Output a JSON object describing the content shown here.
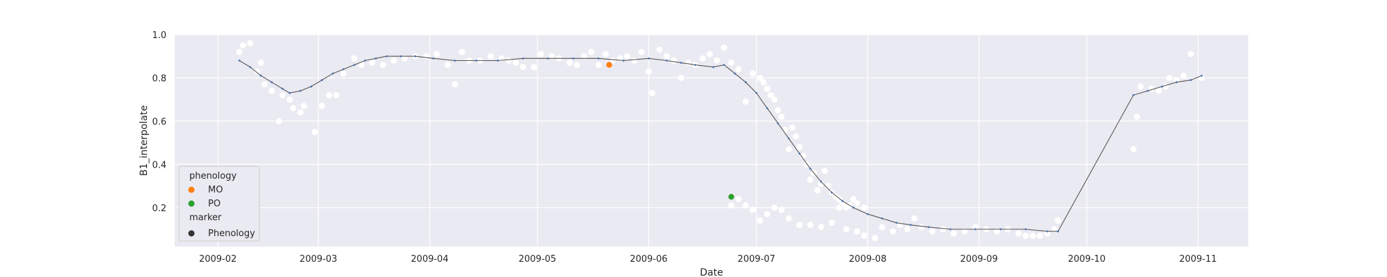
{
  "chart_data": {
    "type": "scatter",
    "title": "",
    "xlabel": "Date",
    "ylabel": "B1_interpolate",
    "xlim": [
      "2009-01-20",
      "2009-11-15"
    ],
    "ylim": [
      0.02,
      1.0
    ],
    "x_ticks": [
      "2009-02-01",
      "2009-03-01",
      "2009-04-01",
      "2009-05-01",
      "2009-06-01",
      "2009-07-01",
      "2009-08-01",
      "2009-09-01",
      "2009-10-01",
      "2009-11-01"
    ],
    "x_tick_labels": [
      "2009-02",
      "2009-03",
      "2009-04",
      "2009-05",
      "2009-06",
      "2009-07",
      "2009-08",
      "2009-09",
      "2009-10",
      "2009-11"
    ],
    "y_ticks": [
      0.2,
      0.4,
      0.6,
      0.8,
      1.0
    ],
    "y_tick_labels": [
      "0.2",
      "0.4",
      "0.6",
      "0.8",
      "1.0"
    ],
    "grid": true,
    "legend_position": "lower-left",
    "colors": {
      "background": "#eaeaf2",
      "grid": "#ffffff",
      "raw_points": "#ffffff",
      "line": "#555555",
      "line_markers": "#4c72b0",
      "MO": "#ff7f0e",
      "PO": "#2ca02c",
      "marker_legend": "#333333"
    },
    "legend": {
      "title_hue": "phenology",
      "hue_items": [
        {
          "label": "MO",
          "color": "#ff7f0e"
        },
        {
          "label": "PO",
          "color": "#2ca02c"
        }
      ],
      "title_style": "marker",
      "style_items": [
        {
          "label": "Phenology",
          "color": "#333333"
        }
      ]
    },
    "raw_points": [
      [
        "2009-02-07",
        0.92
      ],
      [
        "2009-02-08",
        0.95
      ],
      [
        "2009-02-10",
        0.96
      ],
      [
        "2009-02-12",
        0.83
      ],
      [
        "2009-02-13",
        0.87
      ],
      [
        "2009-02-14",
        0.77
      ],
      [
        "2009-02-16",
        0.74
      ],
      [
        "2009-02-18",
        0.6
      ],
      [
        "2009-02-19",
        0.72
      ],
      [
        "2009-02-21",
        0.7
      ],
      [
        "2009-02-22",
        0.66
      ],
      [
        "2009-02-24",
        0.64
      ],
      [
        "2009-02-25",
        0.67
      ],
      [
        "2009-02-28",
        0.55
      ],
      [
        "2009-03-02",
        0.67
      ],
      [
        "2009-03-04",
        0.72
      ],
      [
        "2009-03-06",
        0.72
      ],
      [
        "2009-03-08",
        0.82
      ],
      [
        "2009-03-11",
        0.89
      ],
      [
        "2009-03-13",
        0.86
      ],
      [
        "2009-03-16",
        0.87
      ],
      [
        "2009-03-19",
        0.86
      ],
      [
        "2009-03-22",
        0.88
      ],
      [
        "2009-03-25",
        0.89
      ],
      [
        "2009-03-28",
        0.9
      ],
      [
        "2009-03-31",
        0.9
      ],
      [
        "2009-04-03",
        0.91
      ],
      [
        "2009-04-06",
        0.86
      ],
      [
        "2009-04-08",
        0.77
      ],
      [
        "2009-04-10",
        0.92
      ],
      [
        "2009-04-12",
        0.88
      ],
      [
        "2009-04-15",
        0.88
      ],
      [
        "2009-04-18",
        0.9
      ],
      [
        "2009-04-21",
        0.89
      ],
      [
        "2009-04-23",
        0.88
      ],
      [
        "2009-04-25",
        0.87
      ],
      [
        "2009-04-27",
        0.85
      ],
      [
        "2009-04-30",
        0.85
      ],
      [
        "2009-05-02",
        0.91
      ],
      [
        "2009-05-05",
        0.9
      ],
      [
        "2009-05-07",
        0.89
      ],
      [
        "2009-05-10",
        0.87
      ],
      [
        "2009-05-12",
        0.86
      ],
      [
        "2009-05-14",
        0.9
      ],
      [
        "2009-05-16",
        0.92
      ],
      [
        "2009-05-18",
        0.86
      ],
      [
        "2009-05-20",
        0.91
      ],
      [
        "2009-05-22",
        0.88
      ],
      [
        "2009-05-24",
        0.89
      ],
      [
        "2009-05-26",
        0.9
      ],
      [
        "2009-05-28",
        0.88
      ],
      [
        "2009-05-30",
        0.92
      ],
      [
        "2009-06-01",
        0.83
      ],
      [
        "2009-06-02",
        0.73
      ],
      [
        "2009-06-04",
        0.93
      ],
      [
        "2009-06-06",
        0.9
      ],
      [
        "2009-06-08",
        0.88
      ],
      [
        "2009-06-10",
        0.8
      ],
      [
        "2009-06-12",
        0.87
      ],
      [
        "2009-06-14",
        0.86
      ],
      [
        "2009-06-16",
        0.89
      ],
      [
        "2009-06-18",
        0.91
      ],
      [
        "2009-06-20",
        0.88
      ],
      [
        "2009-06-22",
        0.94
      ],
      [
        "2009-06-24",
        0.87
      ],
      [
        "2009-06-26",
        0.84
      ],
      [
        "2009-06-28",
        0.69
      ],
      [
        "2009-06-30",
        0.82
      ],
      [
        "2009-07-02",
        0.8
      ],
      [
        "2009-07-03",
        0.78
      ],
      [
        "2009-07-04",
        0.75
      ],
      [
        "2009-07-05",
        0.72
      ],
      [
        "2009-07-06",
        0.7
      ],
      [
        "2009-07-07",
        0.65
      ],
      [
        "2009-07-08",
        0.62
      ],
      [
        "2009-07-09",
        0.56
      ],
      [
        "2009-07-10",
        0.47
      ],
      [
        "2009-07-11",
        0.57
      ],
      [
        "2009-07-12",
        0.53
      ],
      [
        "2009-07-13",
        0.48
      ],
      [
        "2009-07-14",
        0.44
      ],
      [
        "2009-07-15",
        0.4
      ],
      [
        "2009-07-16",
        0.33
      ],
      [
        "2009-07-17",
        0.36
      ],
      [
        "2009-07-18",
        0.28
      ],
      [
        "2009-07-19",
        0.31
      ],
      [
        "2009-07-20",
        0.37
      ],
      [
        "2009-07-21",
        0.3
      ],
      [
        "2009-07-22",
        0.27
      ],
      [
        "2009-07-23",
        0.25
      ],
      [
        "2009-07-24",
        0.24
      ],
      [
        "2009-07-25",
        0.22
      ],
      [
        "2009-07-26",
        0.2
      ],
      [
        "2009-07-27",
        0.21
      ],
      [
        "2009-07-28",
        0.24
      ],
      [
        "2009-07-29",
        0.22
      ],
      [
        "2009-07-31",
        0.2
      ]
    ],
    "raw_points_late": [
      [
        "2009-06-24",
        0.21
      ],
      [
        "2009-06-26",
        0.24
      ],
      [
        "2009-06-28",
        0.21
      ],
      [
        "2009-06-30",
        0.19
      ],
      [
        "2009-07-02",
        0.14
      ],
      [
        "2009-07-04",
        0.17
      ],
      [
        "2009-07-06",
        0.2
      ],
      [
        "2009-07-08",
        0.19
      ],
      [
        "2009-07-10",
        0.15
      ],
      [
        "2009-07-13",
        0.12
      ],
      [
        "2009-07-16",
        0.12
      ],
      [
        "2009-07-19",
        0.11
      ],
      [
        "2009-07-22",
        0.13
      ],
      [
        "2009-07-24",
        0.2
      ],
      [
        "2009-07-26",
        0.1
      ],
      [
        "2009-07-29",
        0.09
      ],
      [
        "2009-07-31",
        0.07
      ],
      [
        "2009-08-03",
        0.06
      ],
      [
        "2009-08-05",
        0.11
      ],
      [
        "2009-08-08",
        0.09
      ],
      [
        "2009-08-10",
        0.12
      ],
      [
        "2009-08-12",
        0.1
      ],
      [
        "2009-08-14",
        0.15
      ],
      [
        "2009-08-16",
        0.11
      ],
      [
        "2009-08-19",
        0.09
      ],
      [
        "2009-08-22",
        0.1
      ],
      [
        "2009-08-25",
        0.08
      ],
      [
        "2009-08-28",
        0.09
      ],
      [
        "2009-08-31",
        0.11
      ],
      [
        "2009-09-03",
        0.1
      ],
      [
        "2009-09-06",
        0.09
      ],
      [
        "2009-09-09",
        0.1
      ],
      [
        "2009-09-12",
        0.08
      ],
      [
        "2009-09-14",
        0.07
      ],
      [
        "2009-09-16",
        0.07
      ],
      [
        "2009-09-18",
        0.07
      ],
      [
        "2009-09-20",
        0.08
      ],
      [
        "2009-09-22",
        0.1
      ],
      [
        "2009-09-23",
        0.14
      ],
      [
        "2009-10-14",
        0.47
      ],
      [
        "2009-10-15",
        0.62
      ],
      [
        "2009-10-16",
        0.76
      ],
      [
        "2009-10-19",
        0.75
      ],
      [
        "2009-10-21",
        0.74
      ],
      [
        "2009-10-23",
        0.76
      ],
      [
        "2009-10-24",
        0.8
      ],
      [
        "2009-10-26",
        0.79
      ],
      [
        "2009-10-28",
        0.81
      ],
      [
        "2009-10-30",
        0.91
      ],
      [
        "2009-11-02",
        0.8
      ]
    ],
    "smoothed": [
      [
        "2009-02-07",
        0.88
      ],
      [
        "2009-02-10",
        0.85
      ],
      [
        "2009-02-13",
        0.81
      ],
      [
        "2009-02-16",
        0.78
      ],
      [
        "2009-02-19",
        0.75
      ],
      [
        "2009-02-21",
        0.73
      ],
      [
        "2009-02-24",
        0.74
      ],
      [
        "2009-02-27",
        0.76
      ],
      [
        "2009-03-02",
        0.79
      ],
      [
        "2009-03-05",
        0.82
      ],
      [
        "2009-03-08",
        0.84
      ],
      [
        "2009-03-11",
        0.86
      ],
      [
        "2009-03-14",
        0.88
      ],
      [
        "2009-03-17",
        0.89
      ],
      [
        "2009-03-20",
        0.9
      ],
      [
        "2009-03-24",
        0.9
      ],
      [
        "2009-03-28",
        0.9
      ],
      [
        "2009-04-02",
        0.89
      ],
      [
        "2009-04-08",
        0.88
      ],
      [
        "2009-04-14",
        0.88
      ],
      [
        "2009-04-20",
        0.88
      ],
      [
        "2009-04-27",
        0.89
      ],
      [
        "2009-05-04",
        0.89
      ],
      [
        "2009-05-11",
        0.89
      ],
      [
        "2009-05-18",
        0.89
      ],
      [
        "2009-05-25",
        0.88
      ],
      [
        "2009-06-01",
        0.89
      ],
      [
        "2009-06-06",
        0.88
      ],
      [
        "2009-06-10",
        0.87
      ],
      [
        "2009-06-14",
        0.86
      ],
      [
        "2009-06-19",
        0.85
      ],
      [
        "2009-06-22",
        0.86
      ],
      [
        "2009-06-25",
        0.82
      ],
      [
        "2009-06-28",
        0.78
      ],
      [
        "2009-07-01",
        0.73
      ],
      [
        "2009-07-04",
        0.66
      ],
      [
        "2009-07-07",
        0.59
      ],
      [
        "2009-07-10",
        0.52
      ],
      [
        "2009-07-13",
        0.45
      ],
      [
        "2009-07-16",
        0.38
      ],
      [
        "2009-07-19",
        0.32
      ],
      [
        "2009-07-22",
        0.27
      ],
      [
        "2009-07-25",
        0.23
      ],
      [
        "2009-07-28",
        0.2
      ],
      [
        "2009-08-01",
        0.17
      ],
      [
        "2009-08-05",
        0.15
      ],
      [
        "2009-08-09",
        0.13
      ],
      [
        "2009-08-13",
        0.12
      ],
      [
        "2009-08-18",
        0.11
      ],
      [
        "2009-08-24",
        0.1
      ],
      [
        "2009-08-31",
        0.1
      ],
      [
        "2009-09-07",
        0.1
      ],
      [
        "2009-09-14",
        0.1
      ],
      [
        "2009-09-20",
        0.09
      ],
      [
        "2009-09-23",
        0.09
      ]
    ],
    "smoothed_early": [
      [
        "2009-06-22",
        0.86
      ],
      [
        "2009-06-25",
        0.82
      ],
      [
        "2009-06-28",
        0.78
      ],
      [
        "2009-07-01",
        0.73
      ]
    ],
    "tail_line": [
      [
        "2009-09-23",
        0.09
      ],
      [
        "2009-10-14",
        0.72
      ],
      [
        "2009-10-18",
        0.74
      ],
      [
        "2009-10-22",
        0.76
      ],
      [
        "2009-10-26",
        0.78
      ],
      [
        "2009-10-30",
        0.79
      ],
      [
        "2009-11-02",
        0.81
      ]
    ],
    "phenology_points": [
      {
        "label": "MO",
        "x": "2009-05-21",
        "y": 0.86,
        "color": "#ff7f0e"
      },
      {
        "label": "PO",
        "x": "2009-06-24",
        "y": 0.25,
        "color": "#2ca02c"
      }
    ]
  }
}
